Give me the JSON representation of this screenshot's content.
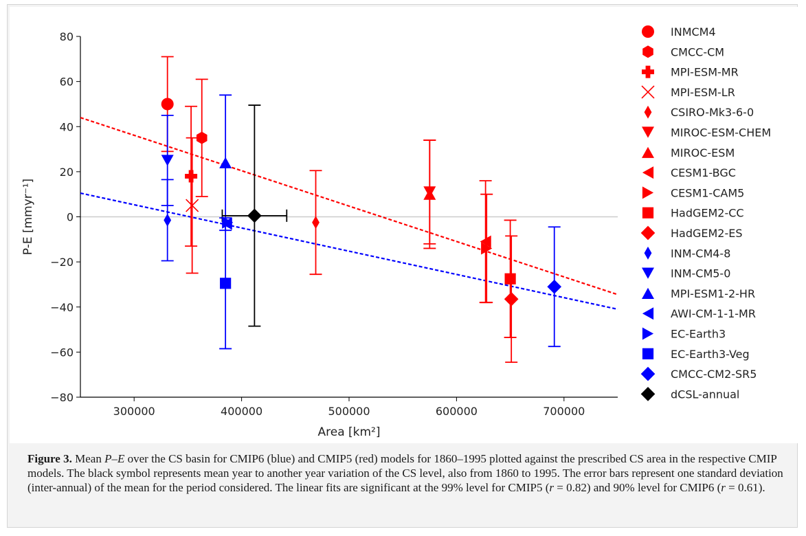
{
  "chart_data": {
    "type": "scatter",
    "xlabel": "Area [km²]",
    "ylabel": "P-E [mmyr⁻¹]",
    "xlim": [
      250000,
      750000
    ],
    "ylim": [
      -80,
      80
    ],
    "xticks": [
      300000,
      400000,
      500000,
      600000,
      700000
    ],
    "yticks": [
      -80,
      -60,
      -40,
      -20,
      0,
      20,
      40,
      60,
      80
    ],
    "legend_position": "right",
    "colors": {
      "cmip5": "#ff0000",
      "cmip6": "#0000ff",
      "obs": "#000000",
      "zero_line": "#cccccc"
    },
    "series": [
      {
        "name": "INMCM4",
        "marker": "circle",
        "color": "#ff0000",
        "x": 331000,
        "y": 50,
        "err": 21
      },
      {
        "name": "CMCC-CM",
        "marker": "hexagon",
        "color": "#ff0000",
        "x": 363000,
        "y": 35,
        "err": 26
      },
      {
        "name": "MPI-ESM-MR",
        "marker": "plus",
        "color": "#ff0000",
        "x": 353000,
        "y": 18,
        "err": 31
      },
      {
        "name": "MPI-ESM-LR",
        "marker": "x",
        "color": "#ff0000",
        "x": 354000,
        "y": 5,
        "err": 30
      },
      {
        "name": "CSIRO-Mk3-6-0",
        "marker": "thin_diamond",
        "color": "#ff0000",
        "x": 469000,
        "y": -2.5,
        "err": 23
      },
      {
        "name": "MIROC-ESM-CHEM",
        "marker": "triangle_down",
        "color": "#ff0000",
        "x": 575000,
        "y": 11,
        "err": 23
      },
      {
        "name": "MIROC-ESM",
        "marker": "triangle_up",
        "color": "#ff0000",
        "x": 575000,
        "y": 10,
        "err": 24
      },
      {
        "name": "CESM1-BGC",
        "marker": "triangle_left",
        "color": "#ff0000",
        "x": 627000,
        "y": -11,
        "err": 27
      },
      {
        "name": "CESM1-CAM5",
        "marker": "triangle_right",
        "color": "#ff0000",
        "x": 628000,
        "y": -14,
        "err": 24
      },
      {
        "name": "HadGEM2-CC",
        "marker": "square",
        "color": "#ff0000",
        "x": 650000,
        "y": -27.5,
        "err": 26
      },
      {
        "name": "HadGEM2-ES",
        "marker": "diamond",
        "color": "#ff0000",
        "x": 651000,
        "y": -36.5,
        "err": 28
      },
      {
        "name": "INM-CM4-8",
        "marker": "thin_diamond",
        "color": "#0000ff",
        "x": 331000,
        "y": -1.5,
        "err": 18
      },
      {
        "name": "INM-CM5-0",
        "marker": "triangle_down",
        "color": "#0000ff",
        "x": 331000,
        "y": 25,
        "err": 20
      },
      {
        "name": "MPI-ESM1-2-HR",
        "marker": "triangle_up",
        "color": "#0000ff",
        "x": 385000,
        "y": 24,
        "err": 30
      },
      {
        "name": "AWI-CM-1-1-MR",
        "marker": "triangle_left",
        "color": "#0000ff",
        "x": 386000,
        "y": -3,
        "err": 0
      },
      {
        "name": "EC-Earth3",
        "marker": "triangle_right",
        "color": "#0000ff",
        "x": 387000,
        "y": -2.5,
        "err": 0
      },
      {
        "name": "EC-Earth3-Veg",
        "marker": "square",
        "color": "#0000ff",
        "x": 385000,
        "y": -29.5,
        "err": 29
      },
      {
        "name": "CMCC-CM2-SR5",
        "marker": "diamond",
        "color": "#0000ff",
        "x": 691000,
        "y": -31,
        "err": 26.5
      },
      {
        "name": "dCSL-annual",
        "marker": "diamond",
        "color": "#000000",
        "x": 412000,
        "y": 0.5,
        "err": 49,
        "xerr": 30000
      }
    ],
    "fit_lines": [
      {
        "group": "CMIP5",
        "color": "#ff0000",
        "x": [
          250000,
          750000
        ],
        "y": [
          44,
          -34.5
        ]
      },
      {
        "group": "CMIP6",
        "color": "#0000ff",
        "x": [
          250000,
          750000
        ],
        "y": [
          10.5,
          -41
        ]
      }
    ]
  },
  "caption": {
    "label": "Figure 3.",
    "part1": " Mean ",
    "var_p": "P",
    "dash": "–",
    "var_e": "E",
    "part2": " over the CS basin for CMIP6 (blue) and CMIP5 (red) models for 1860–1995 plotted against the prescribed CS area in the respective CMIP models. The black symbol represents mean year to another year variation of the CS level, also from 1860 to 1995. The error bars represent one standard deviation (inter-annual) of the mean for the period considered. The linear fits are significant at the 99% level for CMIP5 (",
    "r5": "r",
    "eq5": " = 0.82) and 90% level for CMIP6 (",
    "r6": "r",
    "eq6": " = 0.61)."
  }
}
